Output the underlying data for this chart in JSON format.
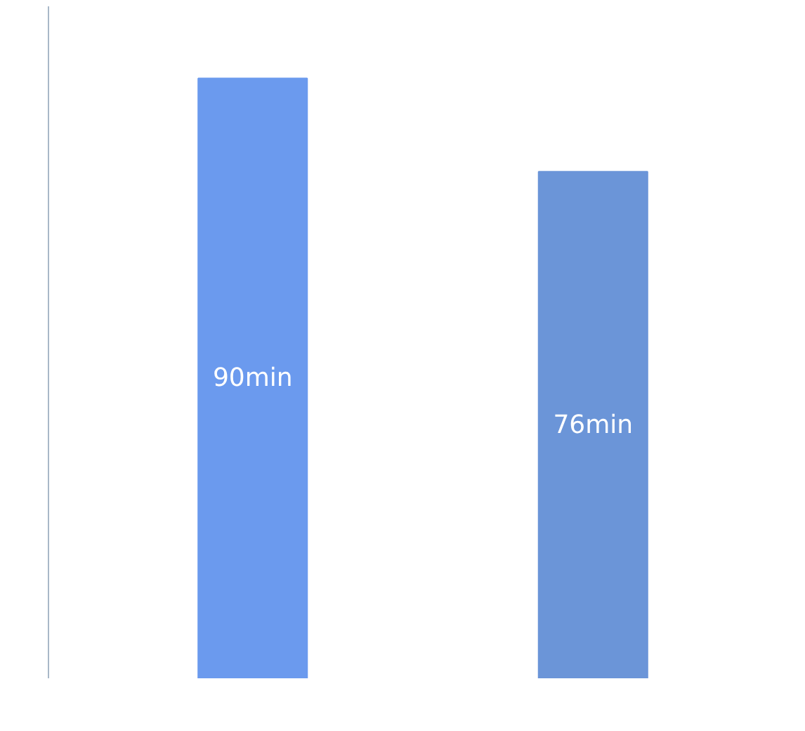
{
  "chart_data": {
    "type": "bar",
    "categories": [
      null,
      null
    ],
    "values": [
      90,
      76
    ],
    "colors": [
      "#6b9aee",
      "#6b95d8"
    ],
    "value_labels": [
      "90min",
      "76min"
    ],
    "tick_labels": false,
    "grid": false
  }
}
